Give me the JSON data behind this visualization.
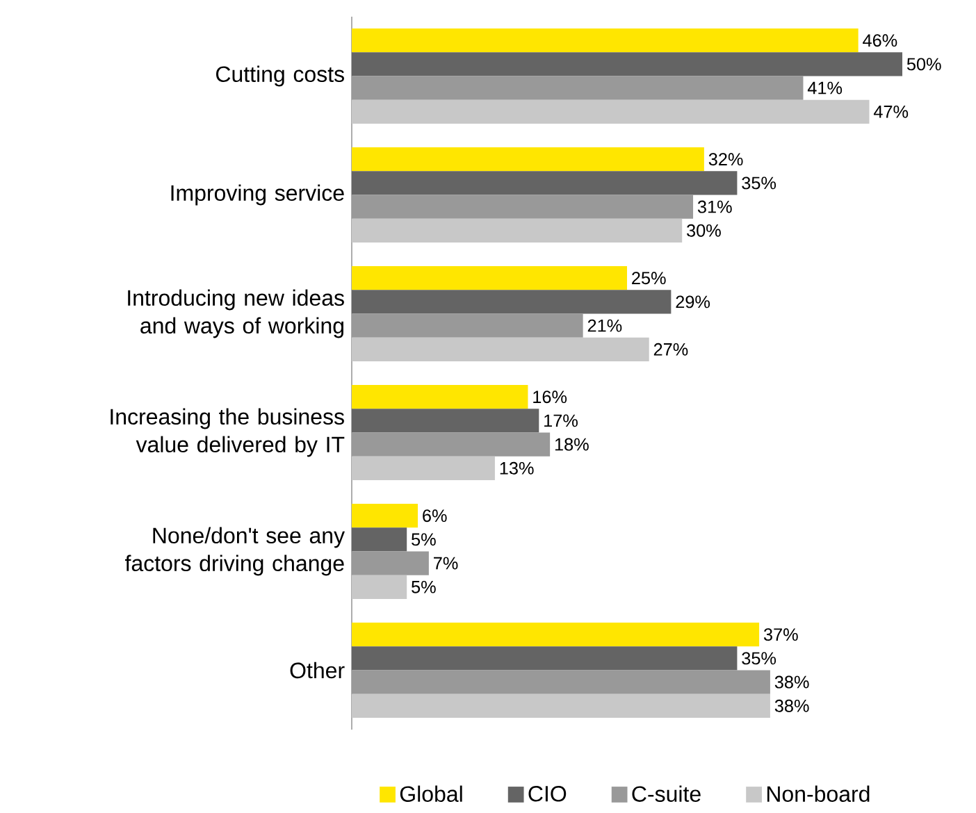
{
  "chart_data": {
    "type": "bar",
    "orientation": "horizontal",
    "legend": "bottom",
    "categories": [
      "Cutting costs",
      "Improving service",
      "Introducing new ideas and ways of working",
      "Increasing the business value delivered by IT",
      "None/don't see any factors driving change",
      "Other"
    ],
    "series": [
      {
        "name": "Global",
        "color": "#ffe600",
        "values": [
          46,
          32,
          25,
          16,
          6,
          37
        ],
        "value_labels": [
          "46%",
          "32%",
          "25%",
          "16%",
          "6%",
          "37%"
        ]
      },
      {
        "name": "CIO",
        "color": "#646464",
        "values": [
          50,
          35,
          29,
          17,
          5,
          35
        ],
        "value_labels": [
          "50%",
          "35%",
          "29%",
          "17%",
          "5%",
          "35%"
        ]
      },
      {
        "name": "C-suite",
        "color": "#999999",
        "values": [
          41,
          31,
          21,
          18,
          7,
          38
        ],
        "value_labels": [
          "41%",
          "31%",
          "21%",
          "18%",
          "7%",
          "38%"
        ]
      },
      {
        "name": "Non-board",
        "color": "#c8c8c8",
        "values": [
          47,
          30,
          27,
          13,
          5,
          38
        ],
        "value_labels": [
          "47%",
          "30%",
          "27%",
          "13%",
          "5%",
          "38%"
        ]
      }
    ]
  }
}
